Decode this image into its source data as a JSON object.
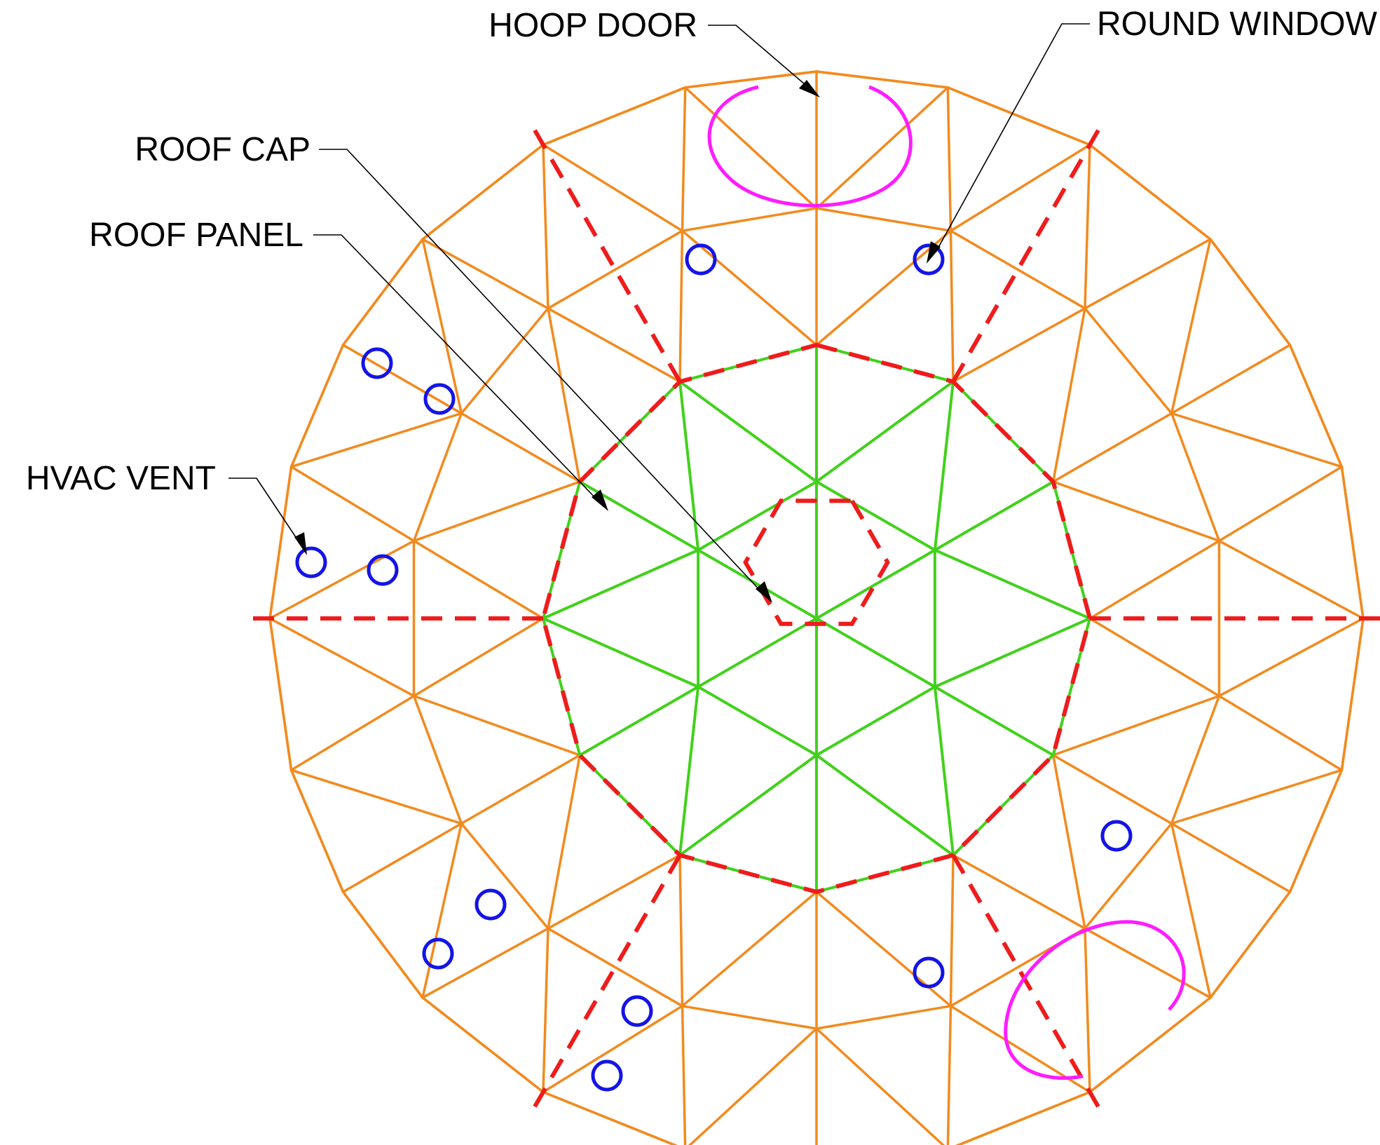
{
  "labels": {
    "hoop_door": "HOOP DOOR",
    "round_window": "ROUND WINDOW",
    "roof_cap": "ROOF CAP",
    "roof_panel": "ROOF PANEL",
    "hvac_vent": "HVAC VENT"
  },
  "colors": {
    "panel_frame": "#f28a1e",
    "cap_frame": "#41d11b",
    "seam_dash": "#ee1c1c",
    "hoop_door": "#ff1cff",
    "window": "#1414e6",
    "leader": "#000000"
  }
}
